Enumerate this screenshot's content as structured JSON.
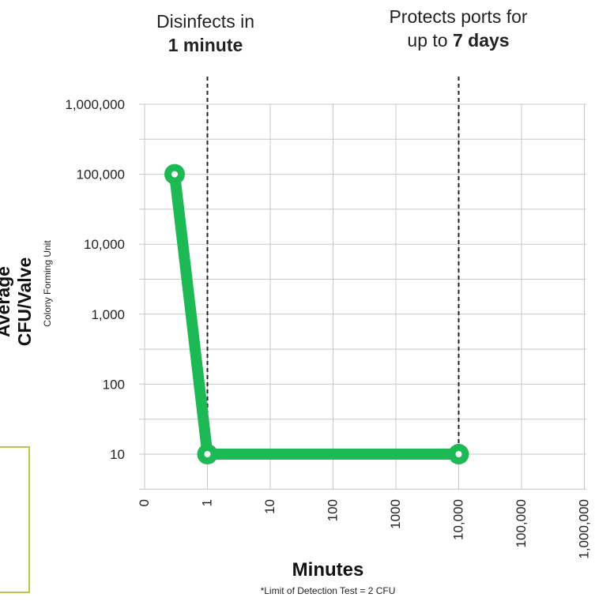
{
  "annotations": [
    {
      "line1": "Disinfects in",
      "line2_bold": "1 minute",
      "line2_prefix": ""
    },
    {
      "line1": "Protects ports for",
      "line2_prefix": "up to ",
      "line2_bold": "7 days"
    }
  ],
  "chart_data": {
    "type": "line",
    "title": "",
    "ylabel": "Average CFU/Valve",
    "ylabel_sub": "Colony Forming Unit",
    "xlabel": "Minutes",
    "footnote": "*Limit of Detection Test = 2 CFU",
    "y_scale": "log",
    "ylim": [
      3,
      1000000
    ],
    "y_ticks": [
      {
        "value": 1000000,
        "label": "1,000,000"
      },
      {
        "value": 100000,
        "label": "100,000"
      },
      {
        "value": 10000,
        "label": "10,000"
      },
      {
        "value": 1000,
        "label": "1,000"
      },
      {
        "value": 100,
        "label": "100"
      },
      {
        "value": 10,
        "label": "10"
      }
    ],
    "x_ticks": [
      "0",
      "1",
      "10",
      "100",
      "1000",
      "10,000",
      "100,000",
      "1,000,000"
    ],
    "series": [
      {
        "color": "#1db954",
        "points": [
          {
            "x": "0",
            "y": 100000
          },
          {
            "x": "1",
            "y": 10
          },
          {
            "x": "10,000",
            "y": 10
          }
        ]
      }
    ],
    "reference_lines_x": [
      "1",
      "10,000"
    ],
    "grid": true
  }
}
